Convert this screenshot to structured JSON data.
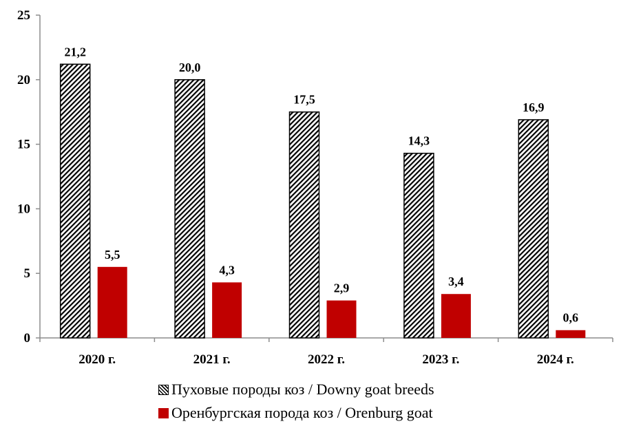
{
  "chart_data": {
    "type": "bar",
    "categories": [
      "2020 г.",
      "2021 г.",
      "2022 г.",
      "2023 г.",
      "2024 г."
    ],
    "series": [
      {
        "name": "Пуховые породы коз / Downy goat breeds",
        "values": [
          21.2,
          20.0,
          17.5,
          14.3,
          16.9
        ],
        "labels": [
          "21,2",
          "20,0",
          "17,5",
          "14,3",
          "16,9"
        ],
        "color": "#000000",
        "pattern": "diagonal-hatch"
      },
      {
        "name": "Оренбургская порода коз / Orenburg goat",
        "values": [
          5.5,
          4.3,
          2.9,
          3.4,
          0.6
        ],
        "labels": [
          "5,5",
          "4,3",
          "2,9",
          "3,4",
          "0,6"
        ],
        "color": "#c00000"
      }
    ],
    "yticks": [
      "0",
      "5",
      "10",
      "15",
      "20",
      "25"
    ],
    "ylim": [
      0,
      25
    ],
    "title": "",
    "xlabel": "",
    "ylabel": "",
    "grid": false,
    "legend_position": "bottom"
  }
}
